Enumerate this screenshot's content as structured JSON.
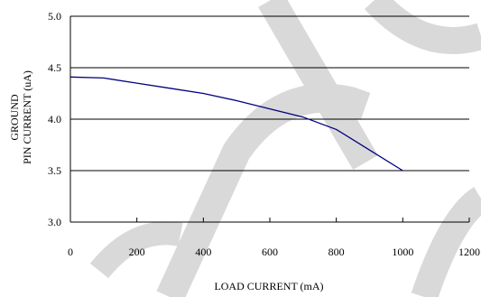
{
  "chart_data": {
    "type": "line",
    "title": "",
    "xlabel": "LOAD CURRENT (mA)",
    "ylabel_lines": [
      "GROUND",
      "PIN CURRENT  (uA)"
    ],
    "xlim": [
      0,
      1200
    ],
    "ylim": [
      3.0,
      5.0
    ],
    "xticks": [
      0,
      200,
      400,
      600,
      800,
      1000,
      1200
    ],
    "yticks": [
      3.0,
      3.5,
      4.0,
      4.5,
      5.0
    ],
    "ytick_labels": [
      "3.0",
      "3.5",
      "4.0",
      "4.5",
      "5.0"
    ],
    "grid": "horizontal",
    "legend": "none",
    "series": [
      {
        "x": [
          0,
          100,
          200,
          300,
          400,
          500,
          600,
          700,
          800,
          900,
          1000
        ],
        "y": [
          4.41,
          4.4,
          4.35,
          4.3,
          4.25,
          4.18,
          4.1,
          4.02,
          3.9,
          3.7,
          3.5
        ],
        "color": "#000080"
      }
    ],
    "colors": {
      "axis": "#000000",
      "grid": "#000000",
      "watermark": "#d9d9d9"
    }
  }
}
